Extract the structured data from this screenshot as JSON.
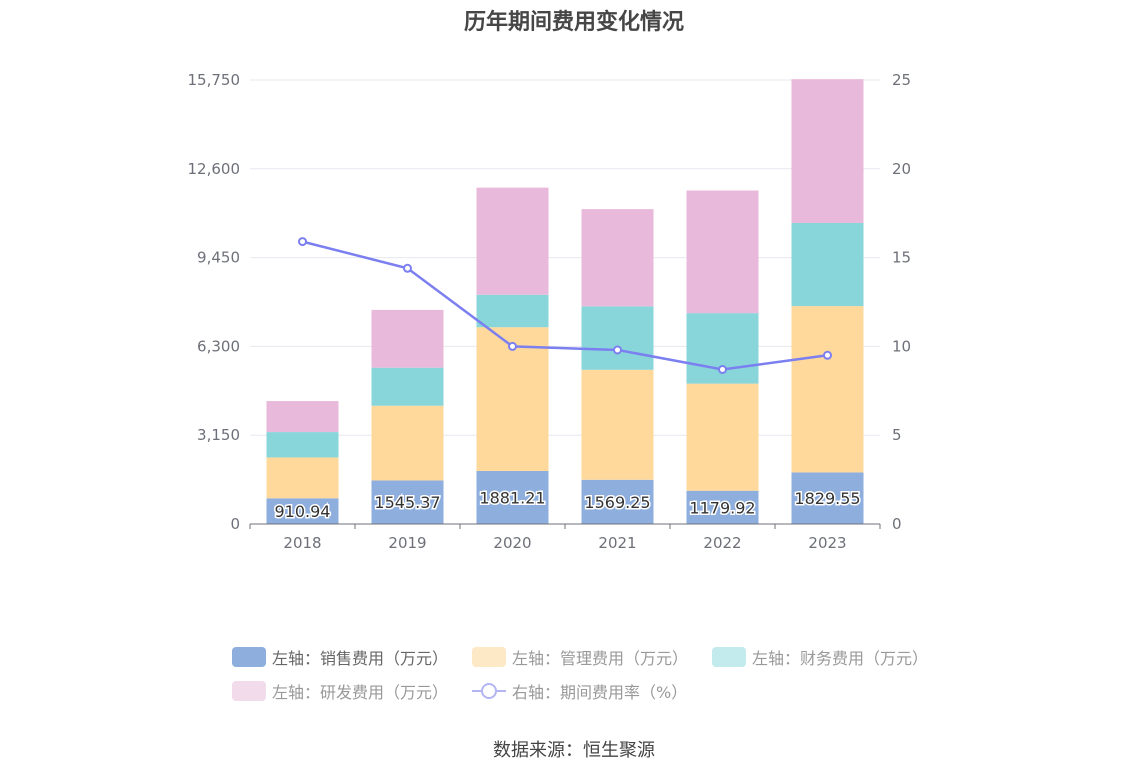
{
  "chart_data": {
    "type": "bar",
    "title": "历年期间费用变化情况",
    "categories": [
      "2018",
      "2019",
      "2020",
      "2021",
      "2022",
      "2023"
    ],
    "left_axis": {
      "min": 0,
      "max": 15750,
      "ticks": [
        "0",
        "3,150",
        "6,300",
        "9,450",
        "12,600",
        "15,750"
      ]
    },
    "right_axis": {
      "min": 0,
      "max": 25,
      "ticks": [
        "0",
        "5",
        "10",
        "15",
        "20",
        "25"
      ]
    },
    "series": [
      {
        "name": "左轴：销售费用（万元）",
        "axis": "left",
        "kind": "bar",
        "color": "#8eaedd",
        "values": [
          910.94,
          1545.37,
          1881.21,
          1569.25,
          1179.92,
          1829.55
        ],
        "labels": [
          "910.94",
          "1545.37",
          "1881.21",
          "1569.25",
          "1179.92",
          "1829.55"
        ]
      },
      {
        "name": "左轴：管理费用（万元）",
        "axis": "left",
        "kind": "bar",
        "color": "#fed99b",
        "values": [
          1450,
          2650,
          5100,
          3900,
          3800,
          5900
        ]
      },
      {
        "name": "左轴：财务费用（万元）",
        "axis": "left",
        "kind": "bar",
        "color": "#88d5da",
        "values": [
          900,
          1350,
          1150,
          2250,
          2500,
          2950
        ]
      },
      {
        "name": "左轴：研发费用（万元）",
        "axis": "left",
        "kind": "bar",
        "color": "#e8b9da",
        "values": [
          1100,
          2050,
          3800,
          3450,
          4350,
          5100
        ]
      },
      {
        "name": "右轴：期间费用率（%）",
        "axis": "right",
        "kind": "line",
        "color": "#7c7ff0",
        "values": [
          15.9,
          14.4,
          10.0,
          9.8,
          8.7,
          9.5
        ]
      }
    ],
    "source": "数据来源：恒生聚源",
    "legend_position": "bottom"
  }
}
